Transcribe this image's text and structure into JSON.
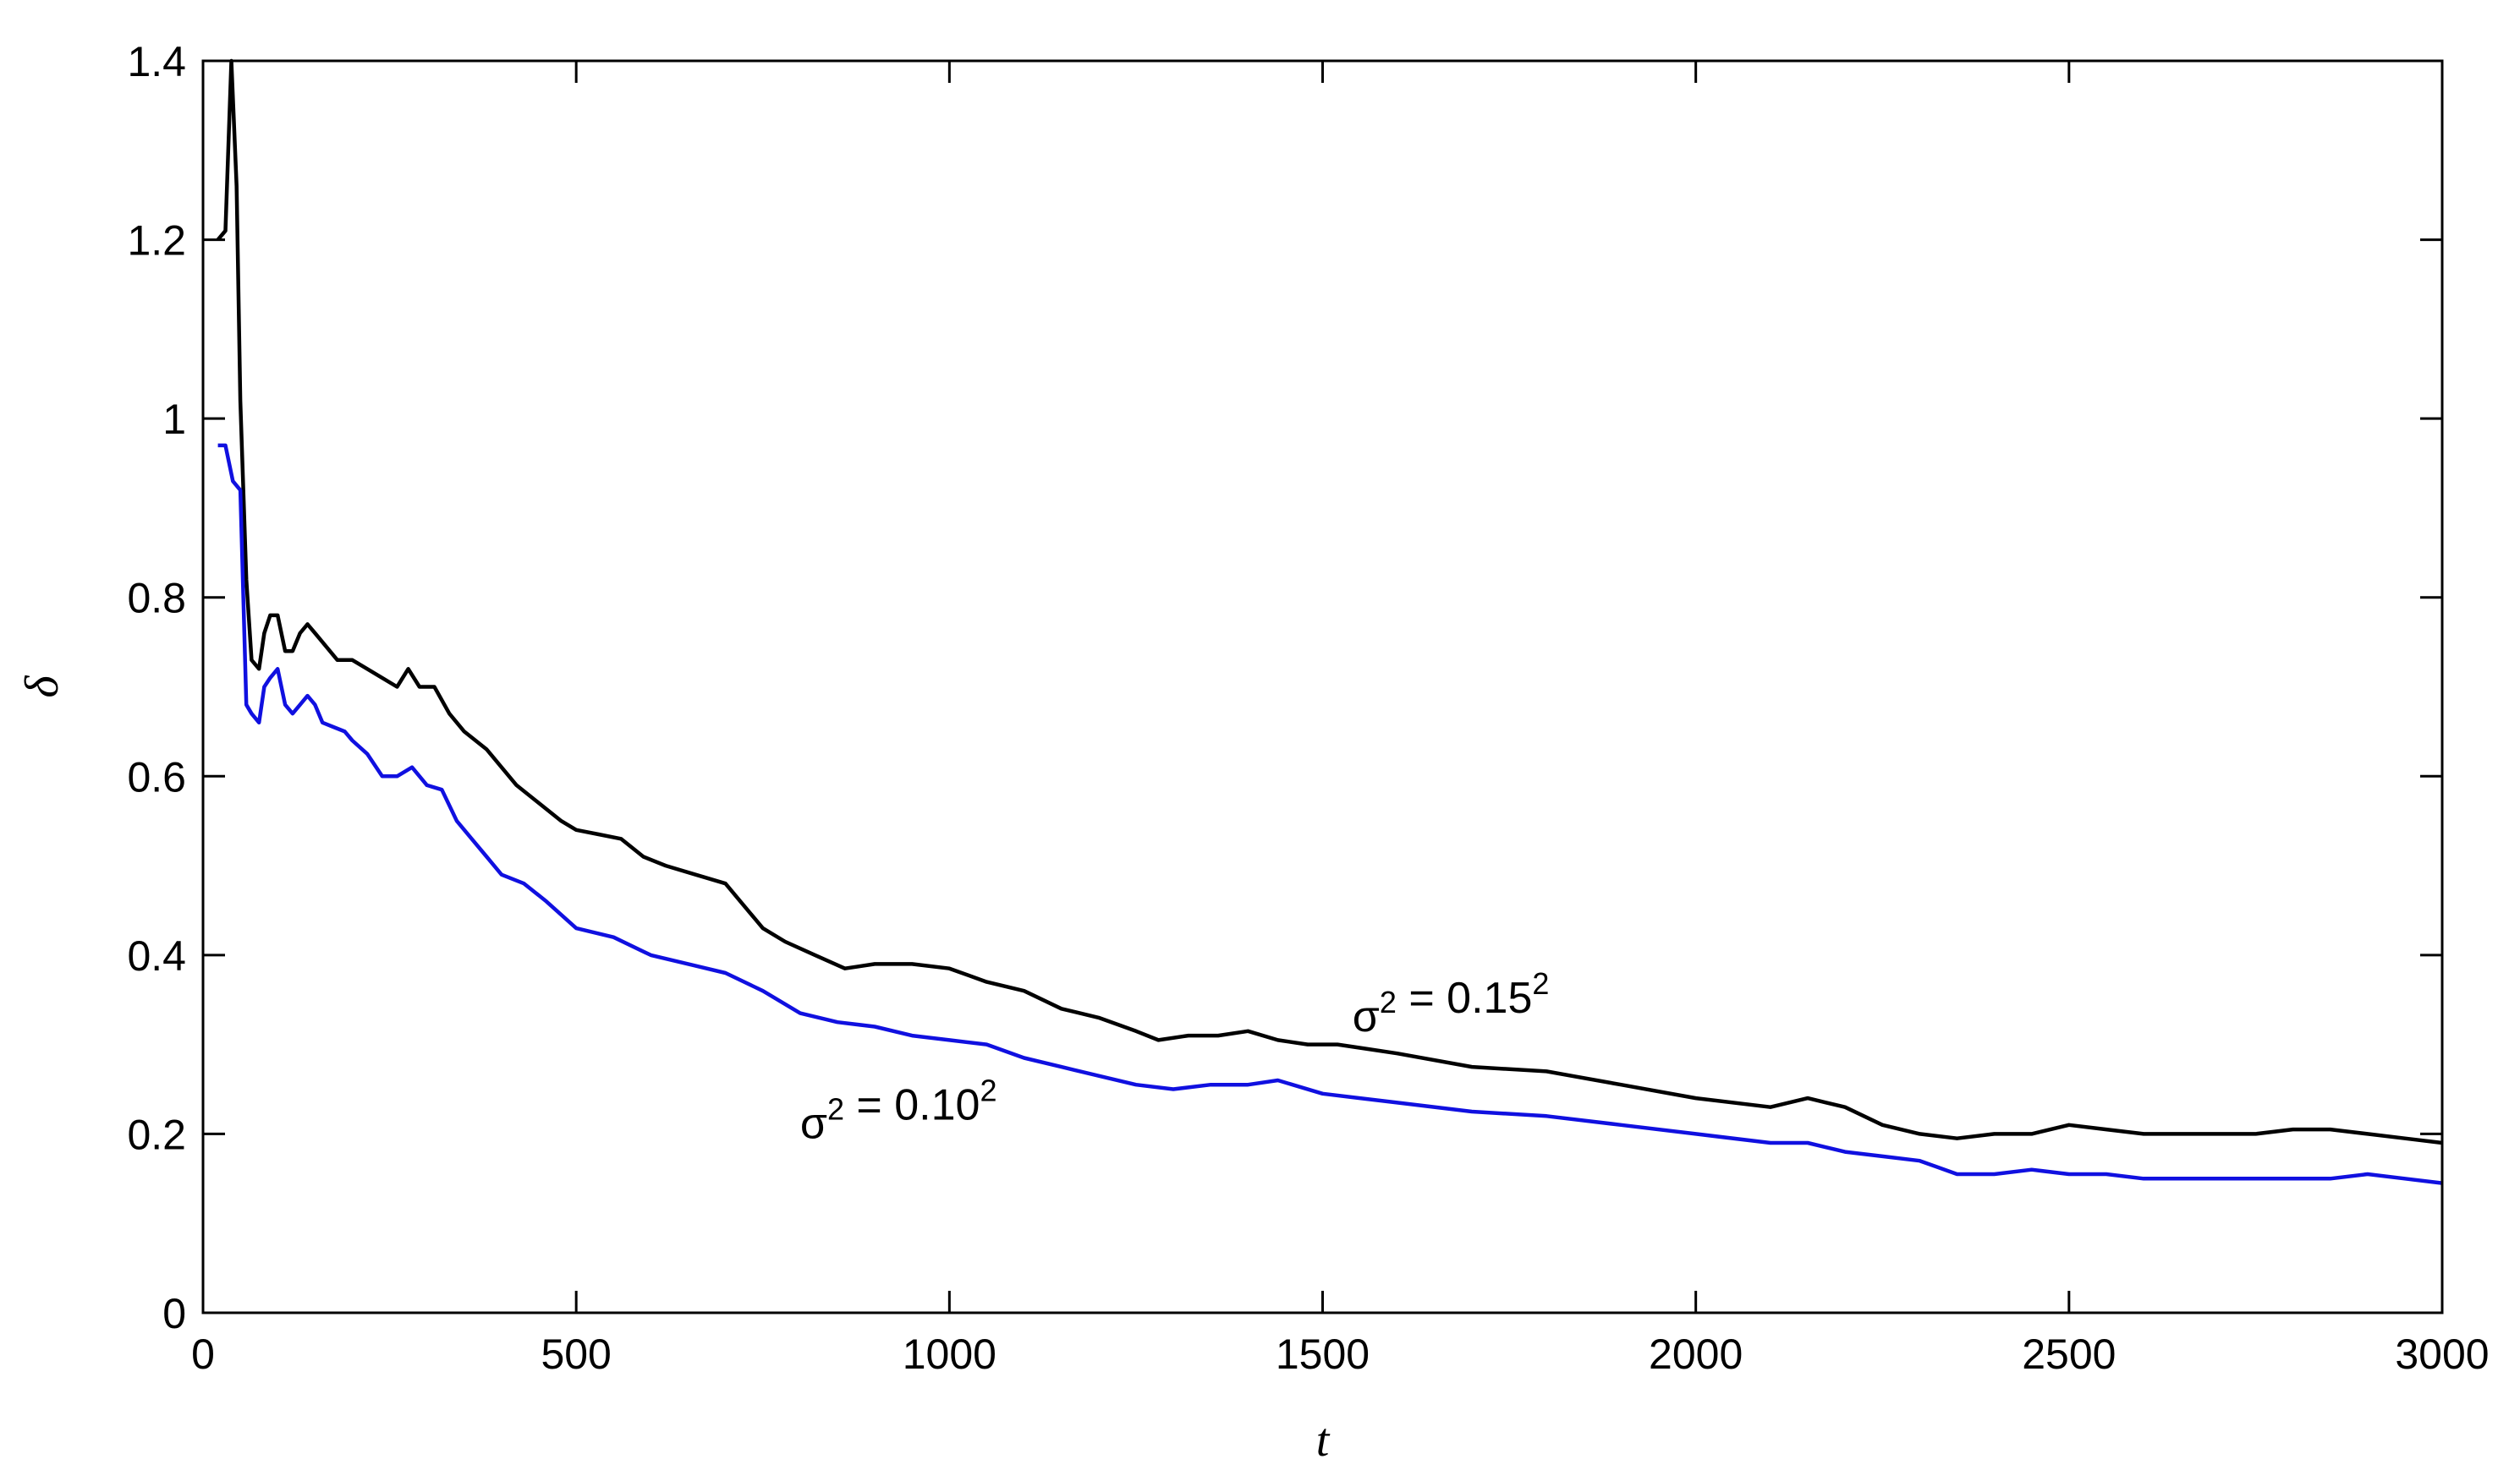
{
  "chart_data": {
    "type": "line",
    "title": "",
    "xlabel": "t",
    "ylabel": "δ",
    "xlim": [
      0,
      3000
    ],
    "ylim": [
      0,
      1.4
    ],
    "xticks": [
      0,
      500,
      1000,
      1500,
      2000,
      2500,
      3000
    ],
    "xtick_labels": [
      "0",
      "500",
      "1000",
      "1500",
      "2000",
      "2500",
      "3000"
    ],
    "yticks": [
      0,
      0.2,
      0.4,
      0.6,
      0.8,
      1,
      1.2,
      1.4
    ],
    "ytick_labels": [
      "0",
      "0.2",
      "0.4",
      "0.6",
      "0.8",
      "1",
      "1.2",
      "1.4"
    ],
    "grid": false,
    "series": [
      {
        "name": "σ² = 0.15²",
        "color": "#000000",
        "x": [
          20,
          30,
          38,
          45,
          50,
          58,
          65,
          75,
          82,
          90,
          100,
          110,
          120,
          130,
          140,
          150,
          160,
          170,
          180,
          200,
          220,
          240,
          260,
          275,
          290,
          310,
          330,
          350,
          380,
          400,
          420,
          450,
          480,
          500,
          530,
          560,
          590,
          620,
          660,
          700,
          720,
          750,
          780,
          820,
          860,
          900,
          950,
          1000,
          1050,
          1100,
          1150,
          1200,
          1250,
          1280,
          1320,
          1360,
          1400,
          1440,
          1480,
          1520,
          1560,
          1600,
          1700,
          1800,
          1900,
          2000,
          2100,
          2150,
          2200,
          2250,
          2300,
          2350,
          2400,
          2450,
          2500,
          2550,
          2600,
          2650,
          2700,
          2750,
          2800,
          2850,
          2900,
          2950,
          3000
        ],
        "y": [
          1.2,
          1.21,
          1.4,
          1.26,
          1.02,
          0.82,
          0.73,
          0.72,
          0.76,
          0.78,
          0.78,
          0.74,
          0.74,
          0.76,
          0.77,
          0.76,
          0.75,
          0.74,
          0.73,
          0.73,
          0.72,
          0.71,
          0.7,
          0.72,
          0.7,
          0.7,
          0.67,
          0.65,
          0.63,
          0.61,
          0.59,
          0.57,
          0.55,
          0.54,
          0.535,
          0.53,
          0.51,
          0.5,
          0.49,
          0.48,
          0.46,
          0.43,
          0.415,
          0.4,
          0.385,
          0.39,
          0.39,
          0.385,
          0.37,
          0.36,
          0.34,
          0.33,
          0.315,
          0.305,
          0.31,
          0.31,
          0.315,
          0.305,
          0.3,
          0.3,
          0.295,
          0.29,
          0.275,
          0.27,
          0.255,
          0.24,
          0.23,
          0.24,
          0.23,
          0.21,
          0.2,
          0.195,
          0.2,
          0.2,
          0.21,
          0.205,
          0.2,
          0.2,
          0.2,
          0.2,
          0.205,
          0.205,
          0.2,
          0.195,
          0.19
        ]
      },
      {
        "name": "σ² = 0.10²",
        "color": "#1010e0",
        "x": [
          20,
          30,
          40,
          50,
          58,
          65,
          75,
          82,
          90,
          100,
          110,
          120,
          130,
          140,
          150,
          160,
          175,
          190,
          200,
          220,
          240,
          260,
          280,
          300,
          320,
          340,
          360,
          380,
          400,
          430,
          460,
          500,
          550,
          600,
          650,
          700,
          750,
          800,
          850,
          900,
          950,
          1000,
          1050,
          1100,
          1150,
          1200,
          1250,
          1300,
          1350,
          1400,
          1440,
          1500,
          1550,
          1600,
          1700,
          1800,
          1900,
          2000,
          2100,
          2150,
          2200,
          2250,
          2300,
          2350,
          2400,
          2450,
          2500,
          2550,
          2600,
          2650,
          2700,
          2750,
          2800,
          2850,
          2900,
          2950,
          3000
        ],
        "y": [
          0.97,
          0.97,
          0.93,
          0.92,
          0.68,
          0.67,
          0.66,
          0.7,
          0.71,
          0.72,
          0.68,
          0.67,
          0.68,
          0.69,
          0.68,
          0.66,
          0.655,
          0.65,
          0.64,
          0.625,
          0.6,
          0.6,
          0.61,
          0.59,
          0.585,
          0.55,
          0.53,
          0.51,
          0.49,
          0.48,
          0.46,
          0.43,
          0.42,
          0.4,
          0.39,
          0.38,
          0.36,
          0.335,
          0.325,
          0.32,
          0.31,
          0.305,
          0.3,
          0.285,
          0.275,
          0.265,
          0.255,
          0.25,
          0.255,
          0.255,
          0.26,
          0.245,
          0.24,
          0.235,
          0.225,
          0.22,
          0.21,
          0.2,
          0.19,
          0.19,
          0.18,
          0.175,
          0.17,
          0.155,
          0.155,
          0.16,
          0.155,
          0.155,
          0.15,
          0.15,
          0.15,
          0.15,
          0.15,
          0.15,
          0.155,
          0.15,
          0.145
        ]
      }
    ],
    "annotations": [
      {
        "text": "σ² = 0.15²",
        "x": 1540,
        "y": 0.315
      },
      {
        "text": "σ² = 0.10²",
        "x": 800,
        "y": 0.195
      }
    ]
  }
}
